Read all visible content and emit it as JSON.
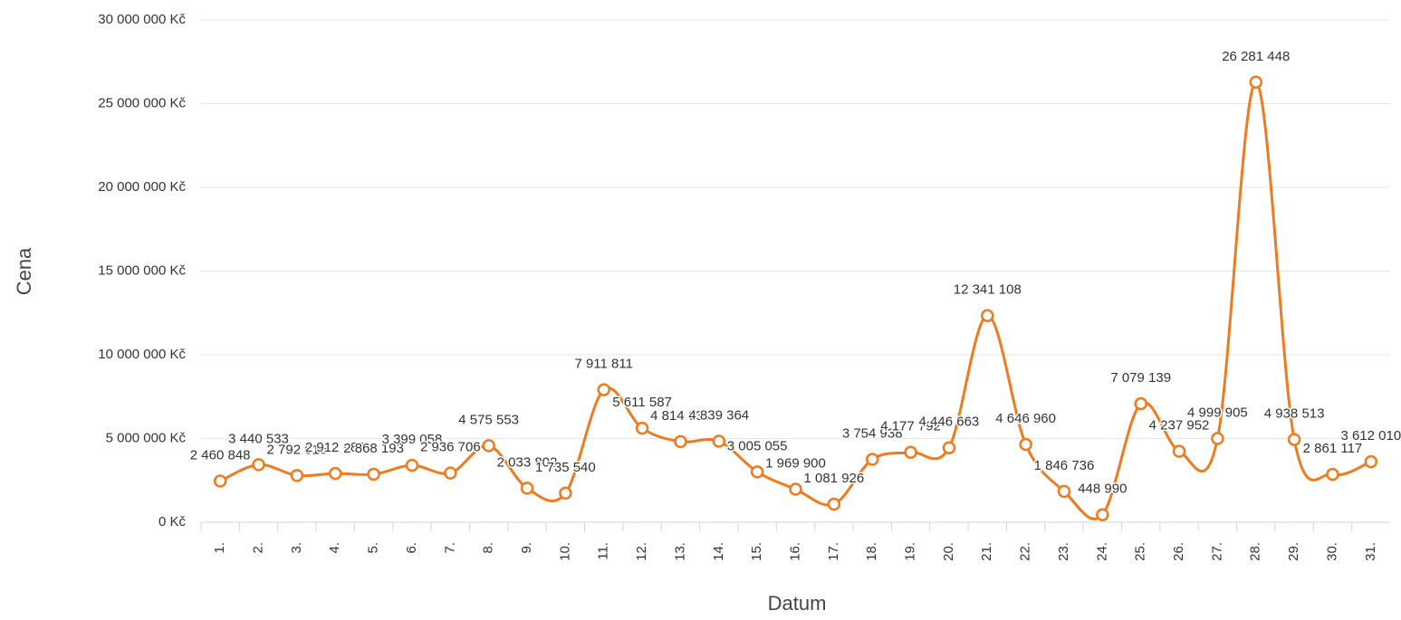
{
  "chart_data": {
    "type": "line",
    "ylabel": "Cena",
    "xlabel": "Datum",
    "categories": [
      "1.",
      "2.",
      "3.",
      "4.",
      "5.",
      "6.",
      "7.",
      "8.",
      "9.",
      "10.",
      "11.",
      "12.",
      "13.",
      "14.",
      "15.",
      "16.",
      "17.",
      "18.",
      "19.",
      "20.",
      "21.",
      "22.",
      "23.",
      "24.",
      "25.",
      "26.",
      "27.",
      "28.",
      "29.",
      "30.",
      "31."
    ],
    "series": [
      {
        "name": "Cena",
        "color": "#f07a1f",
        "values": [
          2460848,
          3440533,
          2792516,
          2912980,
          2868193,
          3399058,
          2936706,
          4575553,
          2033802,
          1735540,
          7911811,
          5611587,
          4814630,
          4839364,
          3005055,
          1969900,
          1081926,
          3754938,
          4177792,
          4446663,
          12341108,
          4646960,
          1846736,
          448990,
          7079139,
          4237952,
          4999905,
          26281448,
          4938513,
          2861117,
          3612010
        ],
        "value_labels": [
          "2 460 848",
          "3 440 533",
          "2 792 516",
          "2 912 980",
          "2 868 193",
          "3 399 058",
          "2 936 706",
          "4 575 553",
          "2 033 802",
          "1 735 540",
          "7 911 811",
          "5 611 587",
          "4 814 630",
          "4 839 364",
          "3 005 055",
          "1 969 900",
          "1 081 926",
          "3 754 938",
          "4 177 792",
          "4 446 663",
          "12 341 108",
          "4 646 960",
          "1 846 736",
          "448 990",
          "7 079 139",
          "4 237 952",
          "4 999 905",
          "26 281 448",
          "4 938 513",
          "2 861 117",
          "3 612 010"
        ]
      }
    ],
    "ylim": [
      0,
      30000000
    ],
    "yticks": [
      {
        "value": 0,
        "label": "0 Kč"
      },
      {
        "value": 5000000,
        "label": "5 000 000 Kč"
      },
      {
        "value": 10000000,
        "label": "10 000 000 Kč"
      },
      {
        "value": 15000000,
        "label": "15 000 000 Kč"
      },
      {
        "value": 20000000,
        "label": "20 000 000 Kč"
      },
      {
        "value": 25000000,
        "label": "25 000 000 Kč"
      },
      {
        "value": 30000000,
        "label": "30 000 000 Kč"
      }
    ],
    "grid": true
  }
}
